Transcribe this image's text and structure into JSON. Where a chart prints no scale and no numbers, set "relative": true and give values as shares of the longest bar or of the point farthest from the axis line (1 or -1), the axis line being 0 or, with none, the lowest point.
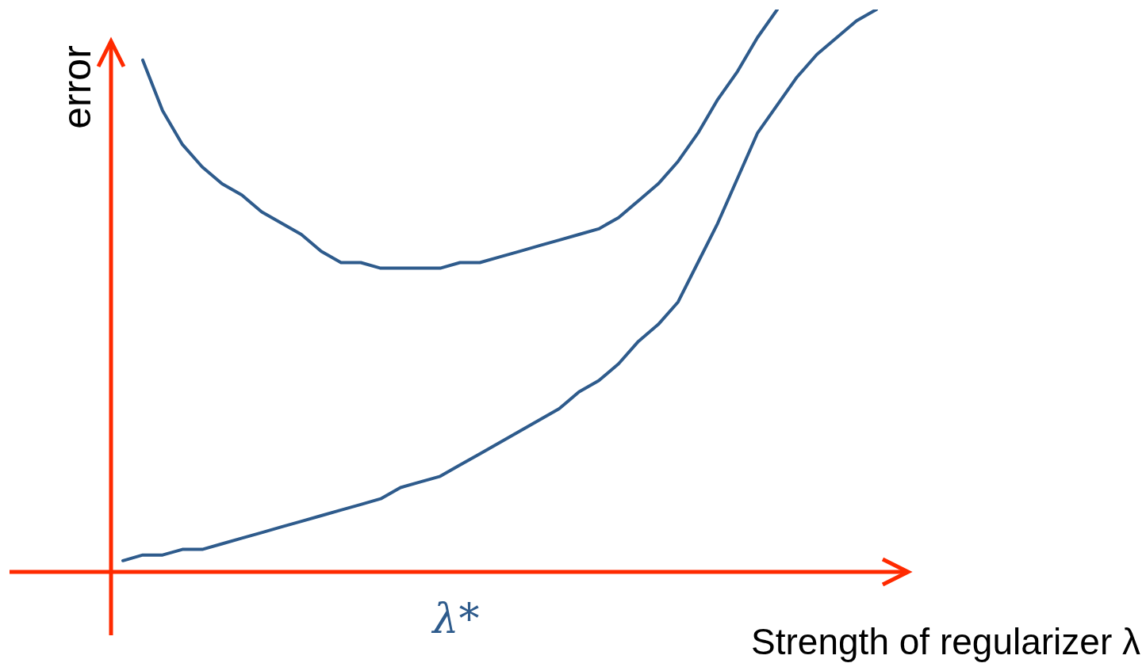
{
  "chart_data": {
    "type": "line",
    "relative": true,
    "xlabel": "Strength of regularizer λ",
    "ylabel": "error",
    "annotations": [
      "λ*"
    ],
    "legend": false,
    "marker": "none",
    "line_style": "solid",
    "categories": [
      null,
      null,
      null,
      null,
      null,
      null,
      null,
      null,
      null,
      null,
      null,
      null,
      null,
      null,
      null,
      null,
      null,
      null,
      null,
      null,
      null,
      null,
      null,
      null,
      null,
      null,
      null,
      null,
      null,
      null,
      null,
      null,
      null,
      null,
      null,
      null,
      null,
      null,
      null
    ],
    "series": [
      {
        "color": "#2e5b8c",
        "values": [
          null,
          0.91,
          0.82,
          0.76,
          0.72,
          0.69,
          0.67,
          0.64,
          0.62,
          0.6,
          0.57,
          0.55,
          0.55,
          0.54,
          0.54,
          0.54,
          0.54,
          0.55,
          0.55,
          0.56,
          0.57,
          0.58,
          0.59,
          0.6,
          0.61,
          0.63,
          0.66,
          0.69,
          0.73,
          0.78,
          0.84,
          0.89,
          0.95,
          1.0,
          null,
          null,
          null,
          null,
          null
        ]
      },
      {
        "color": "#2e5b8c",
        "values": [
          0.02,
          0.03,
          0.03,
          0.04,
          0.04,
          0.05,
          0.06,
          0.07,
          0.08,
          0.09,
          0.1,
          0.11,
          0.12,
          0.13,
          0.15,
          0.16,
          0.17,
          0.19,
          0.21,
          0.23,
          0.25,
          0.27,
          0.29,
          0.32,
          0.34,
          0.37,
          0.41,
          0.44,
          0.48,
          0.55,
          0.62,
          0.7,
          0.78,
          0.83,
          0.88,
          0.92,
          0.95,
          0.98,
          1.0
        ]
      }
    ]
  }
}
